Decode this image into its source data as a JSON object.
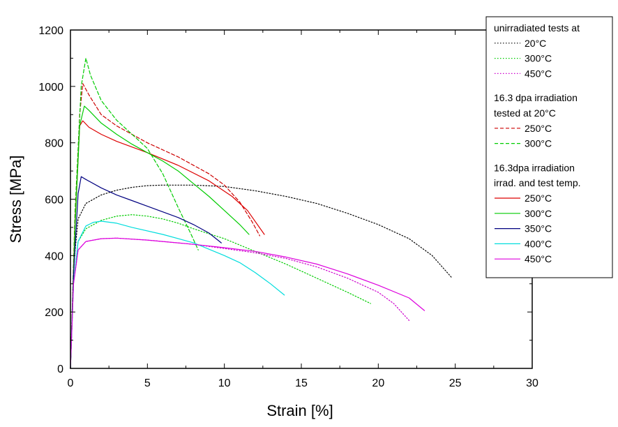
{
  "chart_data": {
    "type": "line",
    "xlabel": "Strain  [%]",
    "ylabel": "Stress [MPa]",
    "xlim": [
      0,
      30
    ],
    "ylim": [
      0,
      1200
    ],
    "xticks": [
      0,
      5,
      10,
      15,
      20,
      25,
      30
    ],
    "yticks": [
      0,
      200,
      400,
      600,
      800,
      1000,
      1200
    ],
    "grid": false,
    "legend_position": "top-right, outside",
    "legend_groups": [
      {
        "heading": [
          "unirradiated tests at"
        ],
        "entries": [
          {
            "label": "20°C",
            "series": 0
          },
          {
            "label": "300°C",
            "series": 1
          },
          {
            "label": "450°C",
            "series": 2
          }
        ]
      },
      {
        "heading": [
          "16.3 dpa irradiation",
          "tested at 20°C"
        ],
        "entries": [
          {
            "label": "250°C",
            "series": 3
          },
          {
            "label": "300°C",
            "series": 4
          }
        ]
      },
      {
        "heading": [
          "16.3dpa irradiation",
          "irrad. and test temp."
        ],
        "entries": [
          {
            "label": "250°C",
            "series": 5
          },
          {
            "label": "300°C",
            "series": 6
          },
          {
            "label": "350°C",
            "series": 7
          },
          {
            "label": "400°C",
            "series": 8
          },
          {
            "label": "450°C",
            "series": 9
          }
        ]
      }
    ],
    "series": [
      {
        "name": "20°C",
        "color": "#000000",
        "style": "dotted",
        "points": [
          [
            0,
            0
          ],
          [
            0.2,
            360
          ],
          [
            0.5,
            530
          ],
          [
            1,
            585
          ],
          [
            2,
            615
          ],
          [
            3,
            632
          ],
          [
            4,
            642
          ],
          [
            5,
            648
          ],
          [
            6,
            650
          ],
          [
            8,
            650
          ],
          [
            10,
            645
          ],
          [
            12,
            630
          ],
          [
            14,
            610
          ],
          [
            16,
            585
          ],
          [
            18,
            550
          ],
          [
            20,
            510
          ],
          [
            22,
            460
          ],
          [
            23.5,
            400
          ],
          [
            24.8,
            320
          ]
        ]
      },
      {
        "name": "300°C",
        "color": "#00cc00",
        "style": "dotted",
        "points": [
          [
            0,
            0
          ],
          [
            0.2,
            300
          ],
          [
            0.5,
            450
          ],
          [
            1,
            495
          ],
          [
            2,
            525
          ],
          [
            3,
            540
          ],
          [
            4,
            545
          ],
          [
            5,
            540
          ],
          [
            6,
            530
          ],
          [
            7,
            515
          ],
          [
            8,
            495
          ],
          [
            10,
            460
          ],
          [
            12,
            415
          ],
          [
            14,
            370
          ],
          [
            16,
            320
          ],
          [
            18,
            270
          ],
          [
            19.5,
            230
          ]
        ]
      },
      {
        "name": "450°C",
        "color": "#cc00cc",
        "style": "dotted",
        "points": [
          [
            0,
            0
          ],
          [
            0.2,
            300
          ],
          [
            0.5,
            420
          ],
          [
            1,
            450
          ],
          [
            2,
            460
          ],
          [
            3,
            462
          ],
          [
            5,
            455
          ],
          [
            8,
            440
          ],
          [
            10,
            425
          ],
          [
            12,
            410
          ],
          [
            14,
            390
          ],
          [
            16,
            360
          ],
          [
            18,
            320
          ],
          [
            20,
            270
          ],
          [
            21,
            230
          ],
          [
            22,
            170
          ]
        ]
      },
      {
        "name": "250°C",
        "color": "#cc0000",
        "style": "dashed",
        "points": [
          [
            0,
            0
          ],
          [
            0.3,
            520
          ],
          [
            0.6,
            900
          ],
          [
            0.8,
            1010
          ],
          [
            1.2,
            970
          ],
          [
            2,
            900
          ],
          [
            3,
            860
          ],
          [
            5,
            800
          ],
          [
            7,
            750
          ],
          [
            9,
            690
          ],
          [
            10,
            650
          ],
          [
            11,
            590
          ],
          [
            11.8,
            520
          ],
          [
            12.3,
            470
          ]
        ]
      },
      {
        "name": "300°C",
        "color": "#00cc00",
        "style": "dashed",
        "points": [
          [
            0,
            0
          ],
          [
            0.3,
            560
          ],
          [
            0.7,
            1000
          ],
          [
            1.0,
            1100
          ],
          [
            1.3,
            1040
          ],
          [
            2,
            950
          ],
          [
            3,
            880
          ],
          [
            4,
            830
          ],
          [
            5,
            780
          ],
          [
            6,
            690
          ],
          [
            7,
            570
          ],
          [
            7.8,
            480
          ],
          [
            8.3,
            420
          ]
        ]
      },
      {
        "name": "250°C",
        "color": "#dd0000",
        "style": "solid",
        "points": [
          [
            0,
            0
          ],
          [
            0.3,
            520
          ],
          [
            0.6,
            860
          ],
          [
            0.8,
            878
          ],
          [
            1.2,
            855
          ],
          [
            2,
            830
          ],
          [
            3,
            805
          ],
          [
            5,
            765
          ],
          [
            7,
            720
          ],
          [
            9,
            665
          ],
          [
            10.5,
            610
          ],
          [
            11.5,
            560
          ],
          [
            12.6,
            475
          ]
        ]
      },
      {
        "name": "300°C",
        "color": "#00cc00",
        "style": "solid",
        "points": [
          [
            0,
            0
          ],
          [
            0.3,
            500
          ],
          [
            0.6,
            860
          ],
          [
            0.9,
            930
          ],
          [
            1.2,
            915
          ],
          [
            2,
            870
          ],
          [
            3,
            830
          ],
          [
            4,
            795
          ],
          [
            5,
            765
          ],
          [
            6,
            735
          ],
          [
            7,
            700
          ],
          [
            8,
            655
          ],
          [
            9,
            610
          ],
          [
            10,
            560
          ],
          [
            11,
            510
          ],
          [
            11.6,
            475
          ]
        ]
      },
      {
        "name": "350°C",
        "color": "#000080",
        "style": "solid",
        "points": [
          [
            0,
            0
          ],
          [
            0.2,
            330
          ],
          [
            0.5,
            620
          ],
          [
            0.7,
            680
          ],
          [
            1,
            670
          ],
          [
            2,
            640
          ],
          [
            3,
            615
          ],
          [
            4,
            595
          ],
          [
            5,
            575
          ],
          [
            6,
            555
          ],
          [
            7,
            535
          ],
          [
            8,
            510
          ],
          [
            9,
            480
          ],
          [
            9.8,
            445
          ]
        ]
      },
      {
        "name": "400°C",
        "color": "#00dddd",
        "style": "solid",
        "points": [
          [
            0,
            0
          ],
          [
            0.2,
            300
          ],
          [
            0.5,
            450
          ],
          [
            1,
            505
          ],
          [
            1.5,
            518
          ],
          [
            2,
            522
          ],
          [
            3,
            515
          ],
          [
            4,
            500
          ],
          [
            6,
            475
          ],
          [
            8,
            445
          ],
          [
            10,
            400
          ],
          [
            11,
            375
          ],
          [
            12,
            340
          ],
          [
            13,
            300
          ],
          [
            13.9,
            260
          ]
        ]
      },
      {
        "name": "450°C",
        "color": "#dd00dd",
        "style": "solid",
        "points": [
          [
            0,
            0
          ],
          [
            0.2,
            300
          ],
          [
            0.5,
            420
          ],
          [
            1,
            450
          ],
          [
            2,
            460
          ],
          [
            3,
            462
          ],
          [
            5,
            455
          ],
          [
            8,
            440
          ],
          [
            10,
            428
          ],
          [
            12,
            415
          ],
          [
            14,
            395
          ],
          [
            16,
            370
          ],
          [
            18,
            335
          ],
          [
            20,
            295
          ],
          [
            22,
            250
          ],
          [
            23,
            205
          ]
        ]
      }
    ]
  }
}
